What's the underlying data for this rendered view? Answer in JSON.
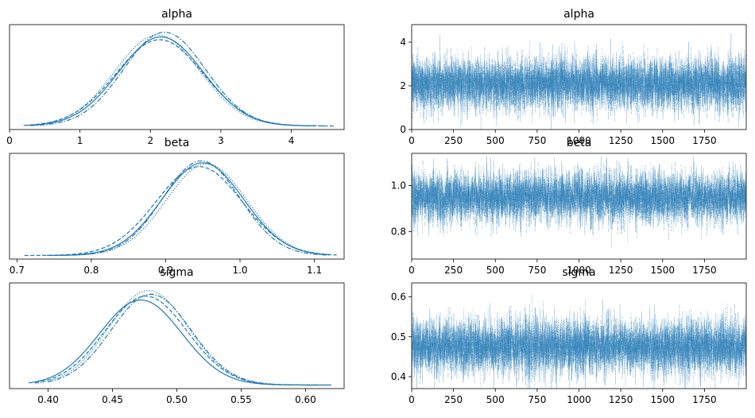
{
  "chart_data": [
    {
      "type": "line",
      "subtype": "density",
      "title": "alpha",
      "xlabel": "",
      "ylabel": "",
      "xlim": [
        0.0,
        4.75
      ],
      "xticks": [
        0,
        1,
        2,
        3,
        4
      ],
      "yticks": [],
      "grid": false,
      "color": "#1f77b4",
      "series": [
        {
          "line_style": "solid",
          "mean": 2.15,
          "sd": 0.6,
          "peak": 0.95,
          "range": [
            0.25,
            4.35
          ]
        },
        {
          "line_style": "dashed",
          "mean": 2.13,
          "sd": 0.62,
          "peak": 0.92,
          "range": [
            0.2,
            4.5
          ]
        },
        {
          "line_style": "dotted",
          "mean": 2.1,
          "sd": 0.6,
          "peak": 0.97,
          "range": [
            0.35,
            4.3
          ]
        },
        {
          "line_style": "dashdot",
          "mean": 2.2,
          "sd": 0.58,
          "peak": 1.0,
          "range": [
            0.3,
            4.6
          ]
        }
      ]
    },
    {
      "type": "line",
      "subtype": "trace",
      "title": "alpha",
      "xlim": [
        0,
        2000
      ],
      "xticks": [
        0,
        250,
        500,
        750,
        1000,
        1250,
        1500,
        1750
      ],
      "ylim": [
        0,
        4.8
      ],
      "yticks": [
        0,
        2,
        4
      ],
      "grid": false,
      "color": "#1f77b4",
      "draws": 2000,
      "chains": 4,
      "center": 2.1,
      "spread": 0.6
    },
    {
      "type": "line",
      "subtype": "density",
      "title": "beta",
      "xlim": [
        0.69,
        1.14
      ],
      "xticks": [
        0.7,
        0.8,
        0.9,
        1.0,
        1.1
      ],
      "xtick_labels": [
        "0.7",
        "0.8",
        "0.9",
        "1.0",
        "1.1"
      ],
      "yticks": [],
      "grid": false,
      "color": "#1f77b4",
      "series": [
        {
          "line_style": "solid",
          "mean": 0.95,
          "sd": 0.055,
          "peak": 0.98,
          "range": [
            0.74,
            1.12
          ]
        },
        {
          "line_style": "dashed",
          "mean": 0.945,
          "sd": 0.058,
          "peak": 0.94,
          "range": [
            0.71,
            1.13
          ]
        },
        {
          "line_style": "dotted",
          "mean": 0.955,
          "sd": 0.054,
          "peak": 0.97,
          "range": [
            0.76,
            1.12
          ]
        },
        {
          "line_style": "dashdot",
          "mean": 0.948,
          "sd": 0.052,
          "peak": 1.0,
          "range": [
            0.75,
            1.12
          ]
        }
      ]
    },
    {
      "type": "line",
      "subtype": "trace",
      "title": "beta",
      "xlim": [
        0,
        2000
      ],
      "xticks": [
        0,
        250,
        500,
        750,
        1000,
        1250,
        1500,
        1750
      ],
      "ylim": [
        0.68,
        1.14
      ],
      "yticks": [
        0.8,
        1.0
      ],
      "ytick_labels": [
        "0.8",
        "1.0"
      ],
      "grid": false,
      "color": "#1f77b4",
      "draws": 2000,
      "chains": 4,
      "center": 0.95,
      "spread": 0.055
    },
    {
      "type": "line",
      "subtype": "density",
      "title": "sigma",
      "xlim": [
        0.37,
        0.63
      ],
      "xticks": [
        0.4,
        0.45,
        0.5,
        0.55,
        0.6
      ],
      "xtick_labels": [
        "0.40",
        "0.45",
        "0.50",
        "0.55",
        "0.60"
      ],
      "yticks": [],
      "grid": false,
      "color": "#1f77b4",
      "series": [
        {
          "line_style": "solid",
          "mean": 0.472,
          "sd": 0.032,
          "peak": 0.9,
          "range": [
            0.385,
            0.62
          ]
        },
        {
          "line_style": "dashed",
          "mean": 0.476,
          "sd": 0.032,
          "peak": 0.94,
          "range": [
            0.39,
            0.61
          ]
        },
        {
          "line_style": "dotted",
          "mean": 0.478,
          "sd": 0.031,
          "peak": 1.0,
          "range": [
            0.39,
            0.6
          ]
        },
        {
          "line_style": "dashdot",
          "mean": 0.48,
          "sd": 0.031,
          "peak": 0.96,
          "range": [
            0.4,
            0.61
          ]
        }
      ]
    },
    {
      "type": "line",
      "subtype": "trace",
      "title": "sigma",
      "xlim": [
        0,
        2000
      ],
      "xticks": [
        0,
        250,
        500,
        750,
        1000,
        1250,
        1500,
        1750
      ],
      "ylim": [
        0.37,
        0.635
      ],
      "yticks": [
        0.4,
        0.5,
        0.6
      ],
      "ytick_labels": [
        "0.4",
        "0.5",
        "0.6"
      ],
      "grid": false,
      "color": "#1f77b4",
      "draws": 2000,
      "chains": 4,
      "center": 0.475,
      "spread": 0.035
    }
  ]
}
